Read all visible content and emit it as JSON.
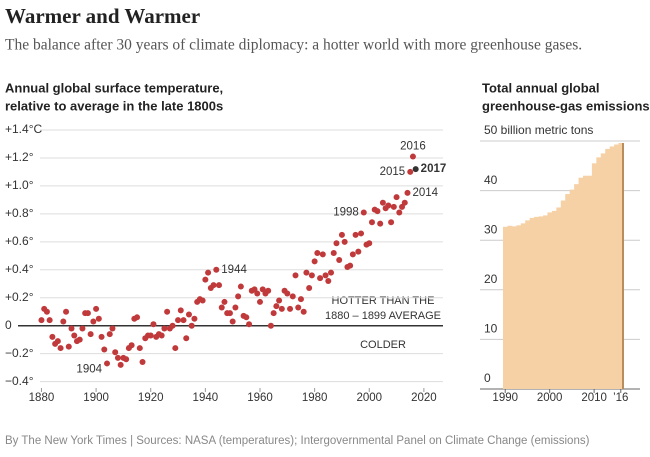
{
  "header": {
    "title": "Warmer and Warmer",
    "subtitle": "The balance after 30 years of climate diplomacy: a hotter world with more greenhouse gases."
  },
  "chart_data": [
    {
      "type": "scatter",
      "title": [
        "Annual global surface temperature,",
        "relative to average in the late 1800s"
      ],
      "color": "#c0393b",
      "highlight_color": "#333333",
      "x": [
        1880,
        1881,
        1882,
        1883,
        1884,
        1885,
        1886,
        1887,
        1888,
        1889,
        1890,
        1891,
        1892,
        1893,
        1894,
        1895,
        1896,
        1897,
        1898,
        1899,
        1900,
        1901,
        1902,
        1903,
        1904,
        1905,
        1906,
        1907,
        1908,
        1909,
        1910,
        1911,
        1912,
        1913,
        1914,
        1915,
        1916,
        1917,
        1918,
        1919,
        1920,
        1921,
        1922,
        1923,
        1924,
        1925,
        1926,
        1927,
        1928,
        1929,
        1930,
        1931,
        1932,
        1933,
        1934,
        1935,
        1936,
        1937,
        1938,
        1939,
        1940,
        1941,
        1942,
        1943,
        1944,
        1945,
        1946,
        1947,
        1948,
        1949,
        1950,
        1951,
        1952,
        1953,
        1954,
        1955,
        1956,
        1957,
        1958,
        1959,
        1960,
        1961,
        1962,
        1963,
        1964,
        1965,
        1966,
        1967,
        1968,
        1969,
        1970,
        1971,
        1972,
        1973,
        1974,
        1975,
        1976,
        1977,
        1978,
        1979,
        1980,
        1981,
        1982,
        1983,
        1984,
        1985,
        1986,
        1987,
        1988,
        1989,
        1990,
        1991,
        1992,
        1993,
        1994,
        1995,
        1996,
        1997,
        1998,
        1999,
        2000,
        2001,
        2002,
        2003,
        2004,
        2005,
        2006,
        2007,
        2008,
        2009,
        2010,
        2011,
        2012,
        2013,
        2014,
        2015,
        2016,
        2017
      ],
      "values": [
        0.04,
        0.12,
        0.1,
        0.04,
        -0.08,
        -0.13,
        -0.11,
        -0.16,
        0.03,
        0.1,
        -0.15,
        -0.02,
        -0.07,
        -0.11,
        -0.1,
        -0.02,
        0.09,
        0.09,
        -0.06,
        0.03,
        0.12,
        0.05,
        -0.08,
        -0.17,
        -0.27,
        -0.06,
        -0.02,
        -0.19,
        -0.23,
        -0.28,
        -0.23,
        -0.24,
        -0.16,
        -0.14,
        0.05,
        0.06,
        -0.16,
        -0.26,
        -0.09,
        -0.07,
        -0.07,
        0.01,
        -0.08,
        -0.06,
        -0.07,
        -0.02,
        0.1,
        -0.02,
        0.0,
        -0.16,
        0.04,
        0.11,
        0.04,
        -0.09,
        0.08,
        0.0,
        0.05,
        0.17,
        0.19,
        0.18,
        0.33,
        0.38,
        0.27,
        0.29,
        0.4,
        0.29,
        0.13,
        0.17,
        0.09,
        0.09,
        0.03,
        0.13,
        0.21,
        0.28,
        0.07,
        0.06,
        0.01,
        0.25,
        0.26,
        0.23,
        0.17,
        0.26,
        0.23,
        0.25,
        0.0,
        0.09,
        0.14,
        0.18,
        0.12,
        0.25,
        0.23,
        0.12,
        0.21,
        0.36,
        0.13,
        0.19,
        0.1,
        0.38,
        0.27,
        0.36,
        0.46,
        0.52,
        0.34,
        0.51,
        0.36,
        0.32,
        0.38,
        0.52,
        0.59,
        0.47,
        0.65,
        0.6,
        0.42,
        0.43,
        0.51,
        0.65,
        0.53,
        0.66,
        0.81,
        0.58,
        0.59,
        0.74,
        0.83,
        0.82,
        0.73,
        0.88,
        0.84,
        0.86,
        0.74,
        0.85,
        0.92,
        0.81,
        0.85,
        0.88,
        0.95,
        1.1,
        1.21,
        1.12
      ],
      "xlim": [
        1878,
        2027
      ],
      "xticks": [
        1880,
        1900,
        1920,
        1940,
        1960,
        1980,
        2000,
        2020
      ],
      "ylim": [
        -0.46,
        1.4
      ],
      "yticks": [
        {
          "value": 1.4,
          "label": "+1.4°C"
        },
        {
          "value": 1.2,
          "label": "+1.2°"
        },
        {
          "value": 1.0,
          "label": "+1.0°"
        },
        {
          "value": 0.8,
          "label": "+0.8°"
        },
        {
          "value": 0.6,
          "label": "+0.6°"
        },
        {
          "value": 0.4,
          "label": "+0.4°"
        },
        {
          "value": 0.2,
          "label": "+0.2°"
        },
        0,
        {
          "value": -0.2,
          "label": "−0.2°"
        },
        {
          "value": -0.4,
          "label": "−0.4°"
        }
      ],
      "grid": true,
      "annotations": [
        {
          "text": "1904",
          "x": 1904,
          "anchor": "left"
        },
        {
          "text": "1944",
          "x": 1944,
          "anchor": "right"
        },
        {
          "text": "1998",
          "x": 1998,
          "anchor": "left"
        },
        {
          "text": "2014",
          "x": 2014,
          "anchor": "right"
        },
        {
          "text": "2015",
          "x": 2015,
          "anchor": "left"
        },
        {
          "text": "2016",
          "x": 2016,
          "anchor": "above"
        },
        {
          "text": "2017",
          "x": 2017,
          "anchor": "right",
          "highlight": true
        }
      ],
      "hotter_label": [
        "HOTTER THAN THE",
        "1880 – 1899 AVERAGE"
      ],
      "colder_label": "COLDER"
    },
    {
      "type": "bar",
      "title": [
        "Total annual global",
        "greenhouse-gas emissions"
      ],
      "color": "#f7d1a6",
      "edge_color": "#b98d5c",
      "x": [
        1990,
        1991,
        1992,
        1993,
        1994,
        1995,
        1996,
        1997,
        1998,
        1999,
        2000,
        2001,
        2002,
        2003,
        2004,
        2005,
        2006,
        2007,
        2008,
        2009,
        2010,
        2011,
        2012,
        2013,
        2014,
        2015,
        2016
      ],
      "values": [
        32.7,
        32.9,
        32.8,
        33.0,
        33.4,
        34.0,
        34.5,
        34.7,
        34.8,
        35.0,
        35.6,
        35.9,
        36.6,
        38.0,
        39.3,
        40.2,
        41.3,
        42.6,
        43.0,
        43.0,
        45.5,
        46.7,
        47.5,
        48.4,
        48.9,
        49.3,
        49.6
      ],
      "xlim": [
        1989.5,
        2016.5
      ],
      "xticks": [
        1990,
        2000,
        2010,
        {
          "value": 2016,
          "label": "’16"
        }
      ],
      "ylim": [
        0,
        50
      ],
      "yticks": [
        0,
        10,
        20,
        30,
        40,
        {
          "value": 50,
          "label": "50 billion metric tons"
        }
      ],
      "grid": true
    }
  ],
  "footer": {
    "source": "By The New York Times | Sources: NASA (temperatures); Intergovernmental Panel on Climate Change (emissions)"
  }
}
